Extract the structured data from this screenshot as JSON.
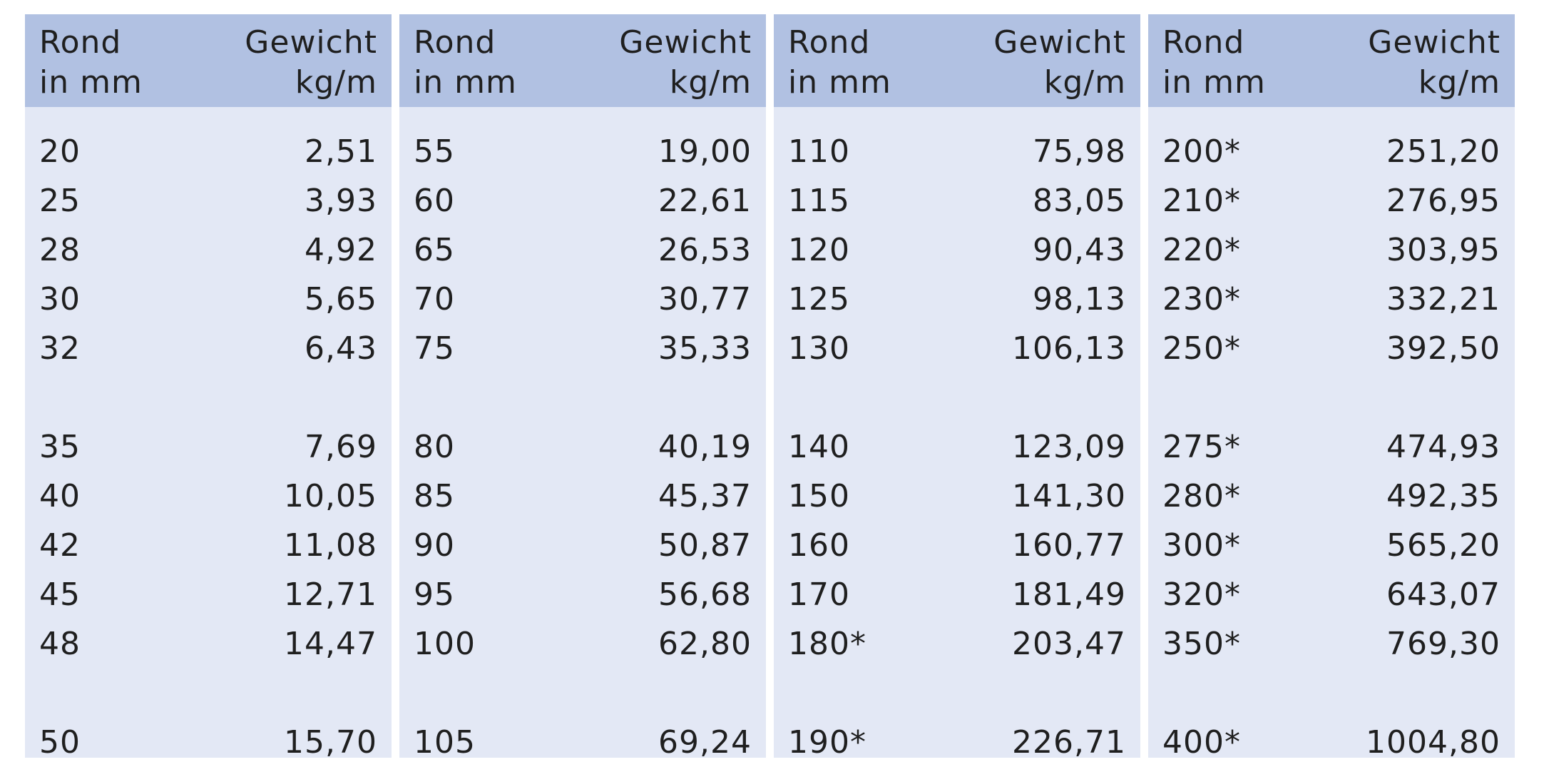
{
  "header": {
    "diameter_line1": "Rond",
    "diameter_line2": "in mm",
    "weight_line1": "Gewicht",
    "weight_line2": "kg/m"
  },
  "columns": [
    {
      "rows": [
        {
          "d": "20",
          "w": "2,51"
        },
        {
          "d": "25",
          "w": "3,93"
        },
        {
          "d": "28",
          "w": "4,92"
        },
        {
          "d": "30",
          "w": "5,65"
        },
        {
          "d": "32",
          "w": "6,43"
        },
        {
          "d": "35",
          "w": "7,69"
        },
        {
          "d": "40",
          "w": "10,05"
        },
        {
          "d": "42",
          "w": "11,08"
        },
        {
          "d": "45",
          "w": "12,71"
        },
        {
          "d": "48",
          "w": "14,47"
        },
        {
          "d": "50",
          "w": "15,70"
        }
      ]
    },
    {
      "rows": [
        {
          "d": "55",
          "w": "19,00"
        },
        {
          "d": "60",
          "w": "22,61"
        },
        {
          "d": "65",
          "w": "26,53"
        },
        {
          "d": "70",
          "w": "30,77"
        },
        {
          "d": "75",
          "w": "35,33"
        },
        {
          "d": "80",
          "w": "40,19"
        },
        {
          "d": "85",
          "w": "45,37"
        },
        {
          "d": "90",
          "w": "50,87"
        },
        {
          "d": "95",
          "w": "56,68"
        },
        {
          "d": "100",
          "w": "62,80"
        },
        {
          "d": "105",
          "w": "69,24"
        }
      ]
    },
    {
      "rows": [
        {
          "d": "110",
          "w": "75,98"
        },
        {
          "d": "115",
          "w": "83,05"
        },
        {
          "d": "120",
          "w": "90,43"
        },
        {
          "d": "125",
          "w": "98,13"
        },
        {
          "d": "130",
          "w": "106,13"
        },
        {
          "d": "140",
          "w": "123,09"
        },
        {
          "d": "150",
          "w": "141,30"
        },
        {
          "d": "160",
          "w": "160,77"
        },
        {
          "d": "170",
          "w": "181,49"
        },
        {
          "d": "180*",
          "w": "203,47"
        },
        {
          "d": "190*",
          "w": "226,71"
        }
      ]
    },
    {
      "rows": [
        {
          "d": "200*",
          "w": "251,20"
        },
        {
          "d": "210*",
          "w": "276,95"
        },
        {
          "d": "220*",
          "w": "303,95"
        },
        {
          "d": "230*",
          "w": "332,21"
        },
        {
          "d": "250*",
          "w": "392,50"
        },
        {
          "d": "275*",
          "w": "474,93"
        },
        {
          "d": "280*",
          "w": "492,35"
        },
        {
          "d": "300*",
          "w": "565,20"
        },
        {
          "d": "320*",
          "w": "643,07"
        },
        {
          "d": "350*",
          "w": "769,30"
        },
        {
          "d": "400*",
          "w": "1004,80"
        }
      ]
    }
  ]
}
